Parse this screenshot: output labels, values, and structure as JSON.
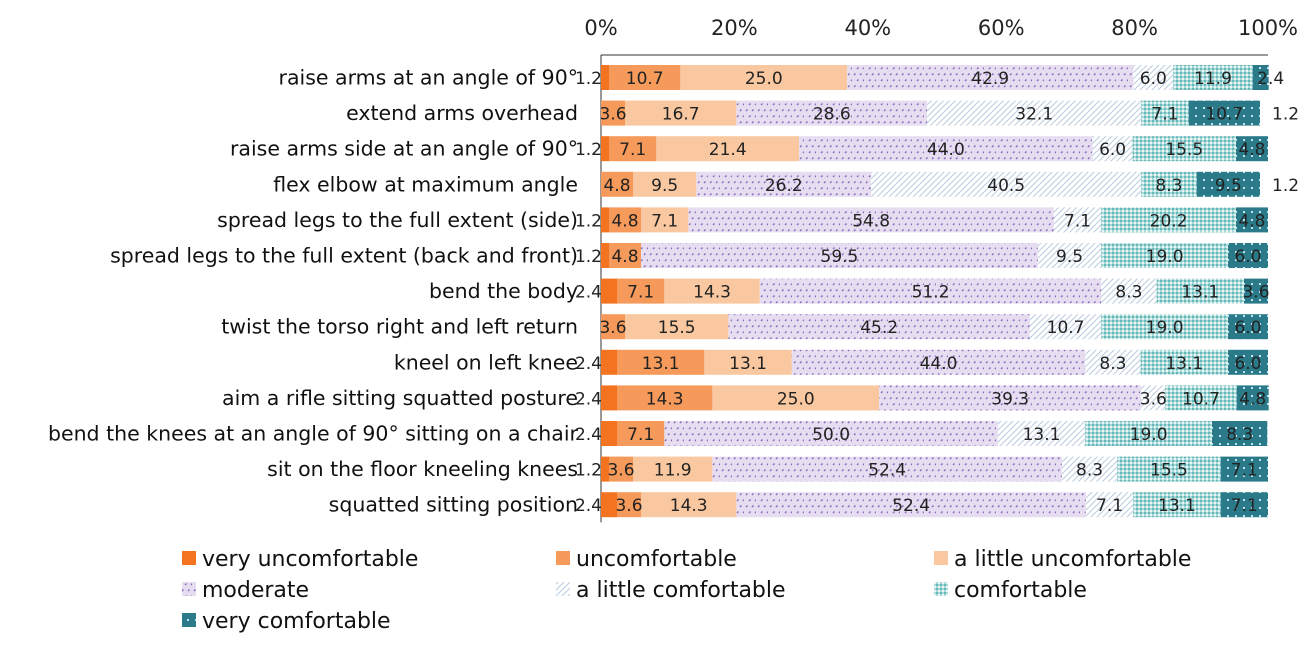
{
  "chart_data": {
    "type": "bar",
    "orientation": "horizontal",
    "stacked": "percent",
    "xlim": [
      0,
      100
    ],
    "x_ticks": [
      "0%",
      "20%",
      "40%",
      "60%",
      "80%",
      "100%"
    ],
    "x_axis_position": "top",
    "grid": false,
    "legend_position": "bottom",
    "categories": [
      "raise arms at an angle of 90°",
      "extend arms overhead",
      "raise arms side at an angle of 90°",
      "flex elbow at maximum angle",
      "spread legs to the full extent (side)",
      "spread legs to the full extent (back and front)",
      "bend the body",
      "twist the torso right and left return",
      "kneel on left knee",
      "aim a rifle sitting squatted posture",
      "bend the knees at an angle of 90° sitting on a chair",
      "sit on the floor kneeling knees",
      "squatted sitting position"
    ],
    "series": [
      {
        "name": "very uncomfortable",
        "color": "#f47320",
        "pattern": "solid",
        "values": [
          1.2,
          0,
          1.2,
          0,
          1.2,
          1.2,
          2.4,
          0,
          2.4,
          2.4,
          2.4,
          1.2,
          2.4
        ],
        "labels": [
          "1.2",
          "",
          "1.2",
          "",
          "1.2",
          "1.2",
          "2.4",
          "",
          "2.4",
          "2.4",
          "2.4",
          "1.2",
          "2.4"
        ]
      },
      {
        "name": "uncomfortable",
        "color": "#f59a5a",
        "pattern": "solid",
        "values": [
          10.7,
          3.6,
          7.1,
          4.8,
          4.8,
          4.8,
          7.1,
          3.6,
          13.1,
          14.3,
          7.1,
          3.6,
          3.6
        ],
        "labels": [
          "10.7",
          "3.6",
          "7.1",
          "4.8",
          "4.8",
          "4.8",
          "7.1",
          "3.6",
          "13.1",
          "14.3",
          "7.1",
          "3.6",
          "3.6"
        ]
      },
      {
        "name": "a little uncomfortable",
        "color": "#f9c8a0",
        "pattern": "solid",
        "values": [
          25.0,
          16.7,
          21.4,
          9.5,
          7.1,
          0,
          14.3,
          15.5,
          13.1,
          25.0,
          0,
          11.9,
          14.3
        ],
        "labels": [
          "25.0",
          "16.7",
          "21.4",
          "9.5",
          "7.1",
          "",
          "14.3",
          "15.5",
          "13.1",
          "25.0",
          "",
          "11.9",
          "14.3"
        ]
      },
      {
        "name": "moderate",
        "color": "#9b7fc4",
        "pattern": "dots",
        "values": [
          42.9,
          28.6,
          44.0,
          26.2,
          54.8,
          59.5,
          51.2,
          45.2,
          44.0,
          39.3,
          50.0,
          52.4,
          52.4
        ],
        "labels": [
          "42.9",
          "28.6",
          "44.0",
          "26.2",
          "54.8",
          "59.5",
          "51.2",
          "45.2",
          "44.0",
          "39.3",
          "50.0",
          "52.4",
          "52.4"
        ]
      },
      {
        "name": "a little comfortable",
        "color": "#b9cde0",
        "pattern": "hatch",
        "values": [
          6.0,
          32.1,
          6.0,
          40.5,
          7.1,
          9.5,
          8.3,
          10.7,
          8.3,
          3.6,
          13.1,
          8.3,
          7.1
        ],
        "labels": [
          "6.0",
          "32.1",
          "6.0",
          "40.5",
          "7.1",
          "9.5",
          "8.3",
          "10.7",
          "8.3",
          "3.6",
          "13.1",
          "8.3",
          "7.1"
        ]
      },
      {
        "name": "comfortable",
        "color": "#8ecccc",
        "pattern": "mesh",
        "values": [
          11.9,
          7.1,
          15.5,
          8.3,
          20.2,
          19.0,
          13.1,
          19.0,
          13.1,
          10.7,
          19.0,
          15.5,
          13.1
        ],
        "labels": [
          "11.9",
          "7.1",
          "15.5",
          "8.3",
          "20.2",
          "19.0",
          "13.1",
          "19.0",
          "13.1",
          "10.7",
          "19.0",
          "15.5",
          "13.1"
        ]
      },
      {
        "name": "very comfortable",
        "color": "#2a7a8a",
        "pattern": "solid",
        "values": [
          2.4,
          10.7,
          4.8,
          9.5,
          4.8,
          6.0,
          3.6,
          6.0,
          6.0,
          4.8,
          8.3,
          7.1,
          7.1
        ],
        "labels": [
          "2.4",
          "10.7",
          "4.8",
          "9.5",
          "4.8",
          "6.0",
          "3.6",
          "6.0",
          "6.0",
          "4.8",
          "8.3",
          "7.1",
          "7.1"
        ]
      }
    ],
    "extra_row_labels": [
      "",
      "1.2",
      "",
      "1.2",
      "",
      "",
      "",
      "",
      "",
      "",
      "",
      "",
      ""
    ]
  }
}
